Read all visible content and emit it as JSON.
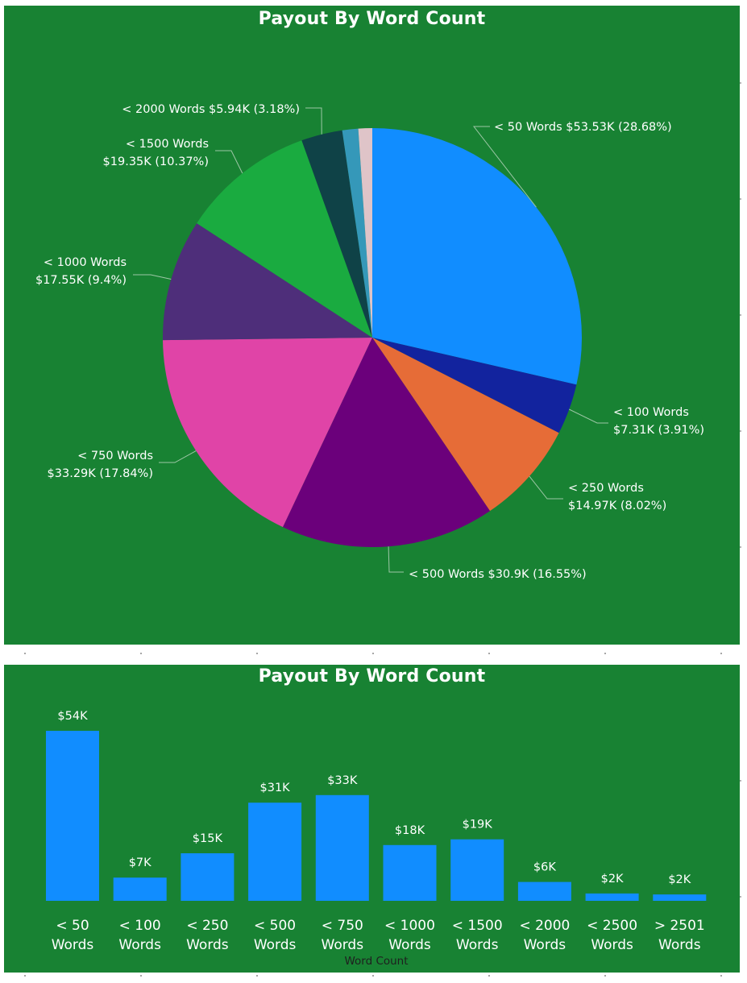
{
  "pie_chart_title": "Payout By Word Count",
  "bar_chart_title": "Payout By Word Count",
  "bar_axis_title": "Word Count",
  "colors": {
    "panel_background": "#188233",
    "bar_fill": "#118DFF",
    "text": "#FFFFFF",
    "axis_title_text": "#1f1f1f",
    "leader_line": "#9dc7a6"
  },
  "chart_data": [
    {
      "type": "pie",
      "title": "Payout By Word Count",
      "slices": [
        {
          "label": "< 50 Words",
          "display_value": "$53.53K",
          "value": 53.53,
          "percent": 28.68,
          "color": "#118DFF",
          "label_lines": [
            "< 50 Words $53.53K (28.68%)"
          ]
        },
        {
          "label": "< 100 Words",
          "display_value": "$7.31K",
          "value": 7.31,
          "percent": 3.91,
          "color": "#12239E",
          "label_lines": [
            "< 100 Words",
            "$7.31K (3.91%)"
          ]
        },
        {
          "label": "< 250 Words",
          "display_value": "$14.97K",
          "value": 14.97,
          "percent": 8.02,
          "color": "#E66C37",
          "label_lines": [
            "< 250 Words",
            "$14.97K (8.02%)"
          ]
        },
        {
          "label": "< 500 Words",
          "display_value": "$30.9K",
          "value": 30.9,
          "percent": 16.55,
          "color": "#6B007B",
          "label_lines": [
            "< 500 Words $30.9K (16.55%)"
          ]
        },
        {
          "label": "< 750 Words",
          "display_value": "$33.29K",
          "value": 33.29,
          "percent": 17.84,
          "color": "#E044A7",
          "label_lines": [
            "< 750 Words",
            "$33.29K (17.84%)"
          ]
        },
        {
          "label": "< 1000 Words",
          "display_value": "$17.55K",
          "value": 17.55,
          "percent": 9.4,
          "color": "#4E2E7A",
          "label_lines": [
            "< 1000 Words",
            "$17.55K (9.4%)"
          ]
        },
        {
          "label": "< 1500 Words",
          "display_value": "$19.35K",
          "value": 19.35,
          "percent": 10.37,
          "color": "#1AAB40",
          "label_lines": [
            "< 1500 Words",
            "$19.35K (10.37%)"
          ]
        },
        {
          "label": "< 2000 Words",
          "display_value": "$5.94K",
          "value": 5.94,
          "percent": 3.18,
          "color": "#0F4247",
          "label_lines": [
            "< 2000 Words $5.94K (3.18%)"
          ]
        },
        {
          "label": "< 2500 Words",
          "value": 2.3,
          "percent": 1.23,
          "color": "#3598B9"
        },
        {
          "label": "> 2501 Words",
          "value": 2.0,
          "percent": 1.07,
          "color": "#DFC4C8"
        }
      ]
    },
    {
      "type": "bar",
      "title": "Payout By Word Count",
      "xlabel": "Word Count",
      "categories": [
        [
          "< 50",
          "Words"
        ],
        [
          "< 100",
          "Words"
        ],
        [
          "< 250",
          "Words"
        ],
        [
          "< 500",
          "Words"
        ],
        [
          "< 750",
          "Words"
        ],
        [
          "< 1000",
          "Words"
        ],
        [
          "< 1500",
          "Words"
        ],
        [
          "< 2000",
          "Words"
        ],
        [
          "< 2500",
          "Words"
        ],
        [
          "> 2501",
          "Words"
        ]
      ],
      "values": [
        53.53,
        7.31,
        14.97,
        30.9,
        33.29,
        17.55,
        19.35,
        5.94,
        2.3,
        2.0
      ],
      "data_labels": [
        "$54K",
        "$7K",
        "$15K",
        "$31K",
        "$33K",
        "$18K",
        "$19K",
        "$6K",
        "$2K",
        "$2K"
      ],
      "ylim": [
        0,
        53.53
      ]
    }
  ]
}
